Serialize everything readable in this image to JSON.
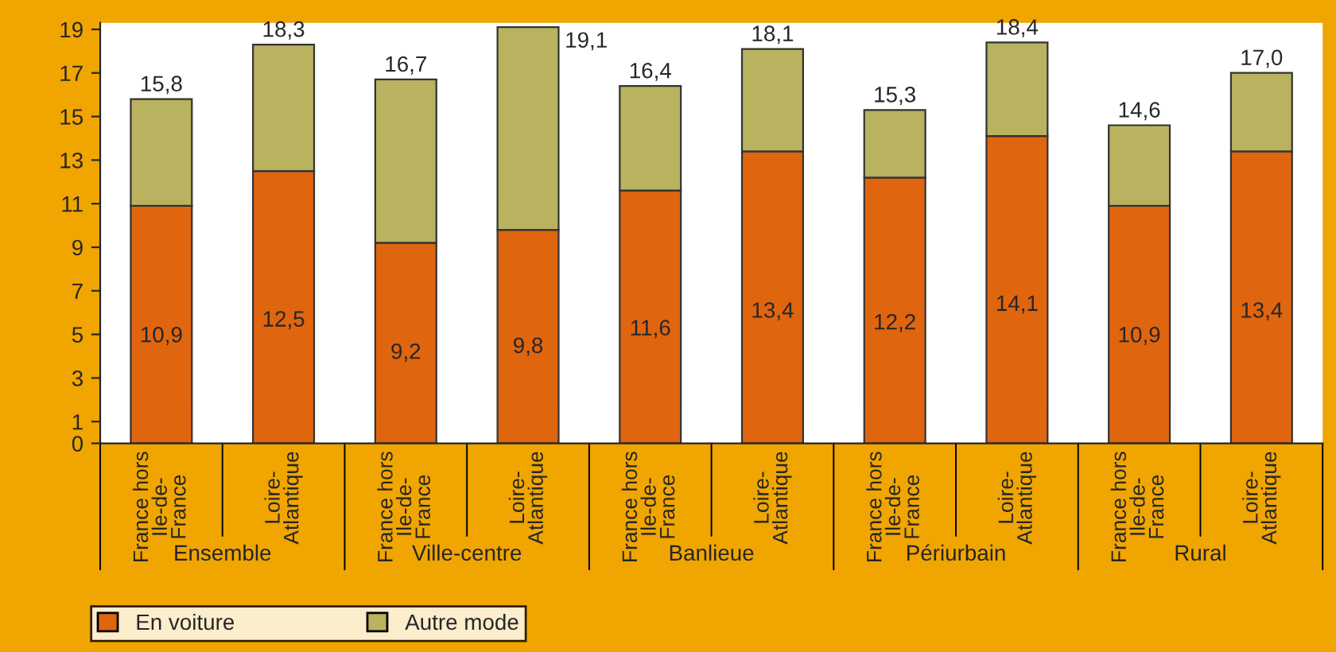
{
  "chart_data": {
    "type": "bar",
    "stacked": true,
    "categories": [
      "France hors\nIle-de-\nFrance",
      "Loire-\nAtlantique",
      "France hors\nIle-de-\nFrance",
      "Loire-\nAtlantique",
      "France hors\nIle-de-\nFrance",
      "Loire-\nAtlantique",
      "France hors\nIle-de-\nFrance",
      "Loire-\nAtlantique",
      "France hors\nIle-de-\nFrance",
      "Loire-\nAtlantique"
    ],
    "series": [
      {
        "name": "En voiture",
        "color": "#e0650f",
        "values": [
          10.9,
          12.5,
          9.2,
          9.8,
          11.6,
          13.4,
          12.2,
          14.1,
          10.9,
          13.4
        ],
        "value_labels": [
          "10,9",
          "12,5",
          "9,2",
          "9,8",
          "11,6",
          "13,4",
          "12,2",
          "14,1",
          "10,9",
          "13,4"
        ]
      },
      {
        "name": "Autre mode",
        "color": "#b9b25e",
        "values": [
          4.9,
          5.8,
          7.5,
          9.3,
          4.8,
          4.7,
          3.1,
          4.3,
          3.7,
          3.6
        ]
      }
    ],
    "totals": [
      "15,8",
      "18,3",
      "16,7",
      "19,1",
      "16,4",
      "18,1",
      "15,3",
      "18,4",
      "14,6",
      "17,0"
    ],
    "annotations": [
      "Ensemble",
      "Ville-centre",
      "Banlieue",
      "Périurbain",
      "Rural"
    ],
    "ylim": [
      0,
      19.3
    ],
    "yticks": [
      0,
      1,
      3,
      5,
      7,
      9,
      11,
      13,
      15,
      17,
      19
    ],
    "legend": "bottom"
  }
}
